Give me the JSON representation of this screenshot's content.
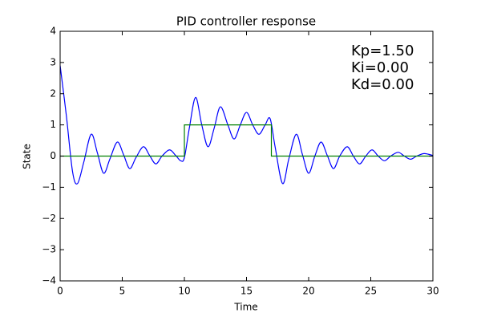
{
  "chart_data": {
    "type": "line",
    "title": "PID controller response",
    "xlabel": "Time",
    "ylabel": "State",
    "annotations": [
      "Kp=1.50",
      "Ki=0.00",
      "Kd=0.00"
    ],
    "xlim": [
      0,
      30
    ],
    "xticks": [
      0,
      5,
      10,
      15,
      20,
      25,
      30
    ],
    "ylim": [
      -4,
      4
    ],
    "yticks": [
      {
        "value": -4,
        "label": "−4"
      },
      {
        "value": -3,
        "label": "−3"
      },
      {
        "value": -2,
        "label": "−2"
      },
      {
        "value": -1,
        "label": "−1"
      },
      0,
      1,
      2,
      3,
      4
    ],
    "grid": false,
    "series": [
      {
        "color": "#0000ff",
        "x": [
          0,
          0.5,
          1.0,
          1.4,
          1.9,
          2.5,
          3.0,
          3.5,
          4.0,
          4.6,
          5.1,
          5.6,
          6.1,
          6.7,
          7.2,
          7.7,
          8.2,
          8.8,
          9.3,
          9.7,
          10.0,
          10.4,
          10.9,
          11.4,
          11.9,
          12.4,
          12.9,
          13.5,
          14.0,
          14.5,
          15.0,
          15.5,
          16.0,
          16.5,
          16.9,
          17.3,
          17.9,
          18.4,
          19.0,
          19.5,
          20.0,
          20.5,
          21.0,
          21.5,
          22.0,
          22.5,
          23.1,
          23.6,
          24.1,
          24.6,
          25.1,
          25.6,
          26.1,
          26.6,
          27.2,
          27.7,
          28.2,
          28.7,
          29.3,
          30
        ],
        "values": [
          2.9,
          1.3,
          -0.5,
          -0.88,
          -0.2,
          0.7,
          0.1,
          -0.55,
          -0.1,
          0.45,
          0.05,
          -0.4,
          -0.05,
          0.3,
          0.02,
          -0.25,
          0,
          0.2,
          0.02,
          -0.15,
          -0.05,
          0.9,
          1.88,
          1.0,
          0.3,
          0.9,
          1.58,
          1.0,
          0.55,
          1.0,
          1.4,
          1.0,
          0.7,
          1.0,
          1.2,
          0.3,
          -0.88,
          -0.1,
          0.7,
          0.05,
          -0.55,
          0,
          0.45,
          0.02,
          -0.4,
          0,
          0.3,
          0,
          -0.25,
          0,
          0.2,
          0,
          -0.15,
          0,
          0.12,
          0,
          -0.1,
          0,
          0.08,
          0.02
        ],
        "smooth": true
      },
      {
        "color": "#008000",
        "x": [
          0,
          10,
          10,
          17,
          17,
          30
        ],
        "values": [
          0,
          0,
          1,
          1,
          0,
          0
        ],
        "smooth": false
      }
    ]
  }
}
